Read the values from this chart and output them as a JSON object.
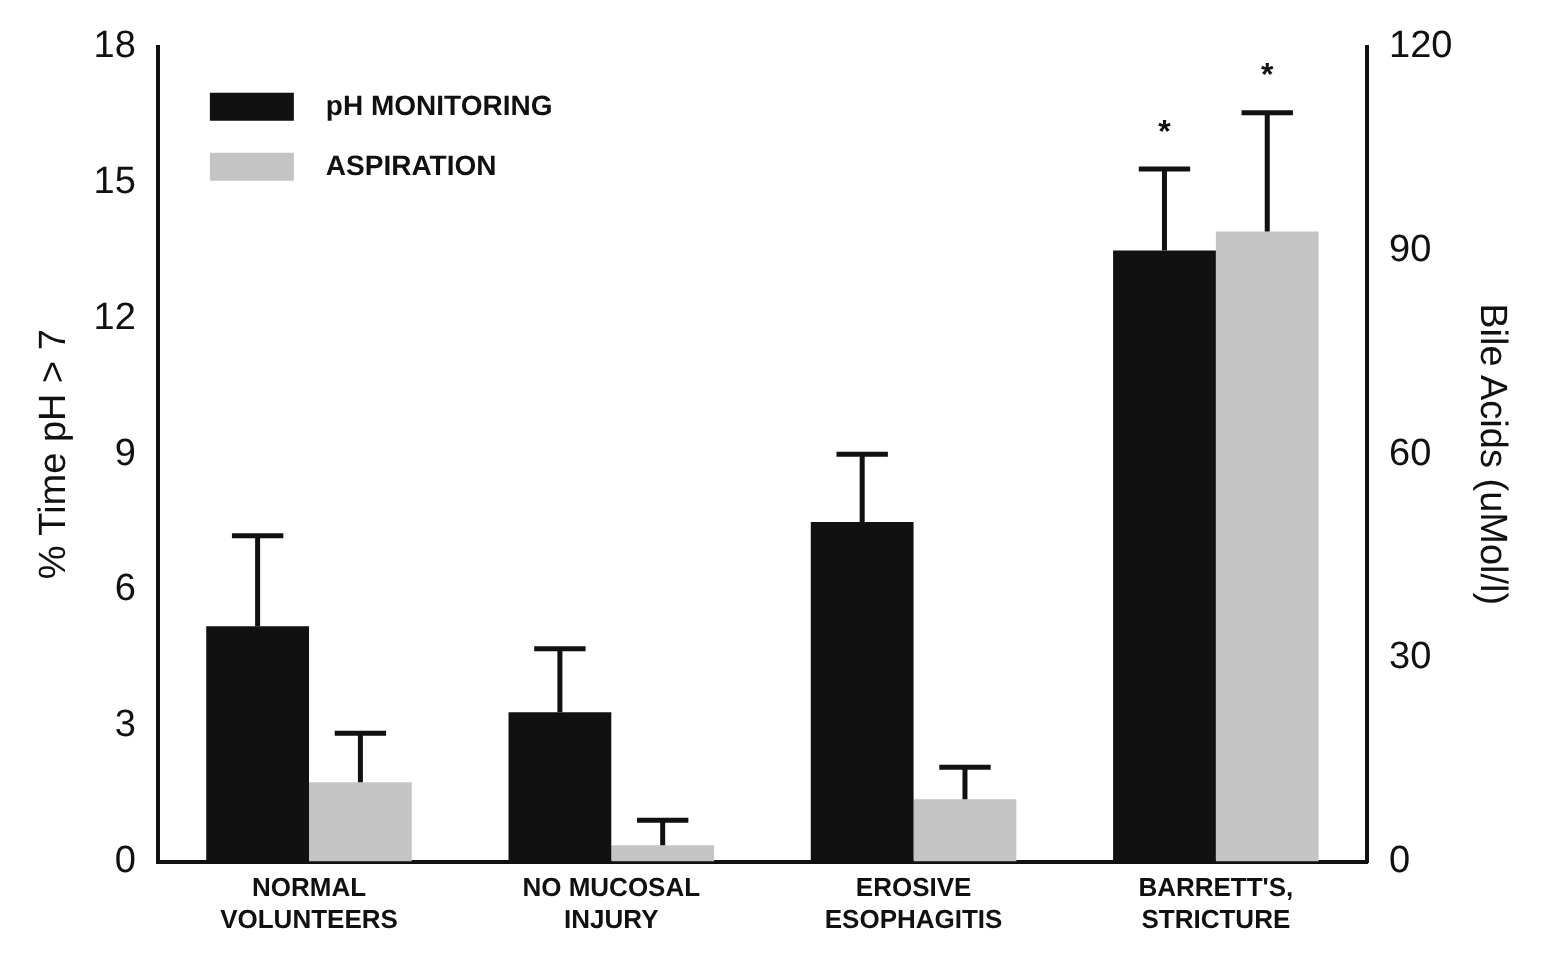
{
  "chart_data": {
    "type": "bar",
    "categories": [
      "NORMAL VOLUNTEERS",
      "NO MUCOSAL INJURY",
      "EROSIVE ESOPHAGITIS",
      "BARRETT'S, STRICTURE"
    ],
    "series": [
      {
        "name": "pH MONITORING",
        "color": "#111111",
        "values": [
          5.2,
          3.3,
          7.5,
          13.5
        ],
        "errors": [
          [
            5.2,
            7.2
          ],
          [
            3.3,
            4.7
          ],
          [
            7.5,
            9.0
          ],
          [
            13.5,
            15.3
          ]
        ]
      },
      {
        "name": "ASPIRATION",
        "color": "#c4c4c4",
        "axis": "y2",
        "values": [
          11.7,
          2.4,
          9.2,
          92.8
        ],
        "errors": [
          [
            11.7,
            18.9
          ],
          [
            2.4,
            6.1
          ],
          [
            9.2,
            13.9
          ],
          [
            92.8,
            110.3
          ]
        ]
      }
    ],
    "ylabel": "% Time pH > 7",
    "y2label": "Bile Acids (uMol/l)",
    "ylim": [
      0,
      18
    ],
    "yticks": [
      0,
      3,
      6,
      9,
      12,
      15,
      18
    ],
    "y2lim": [
      0,
      120
    ],
    "y2ticks": [
      0,
      30,
      60,
      90,
      120
    ],
    "annotations": [
      "*",
      "*"
    ],
    "legend": "top left",
    "grid": false
  }
}
